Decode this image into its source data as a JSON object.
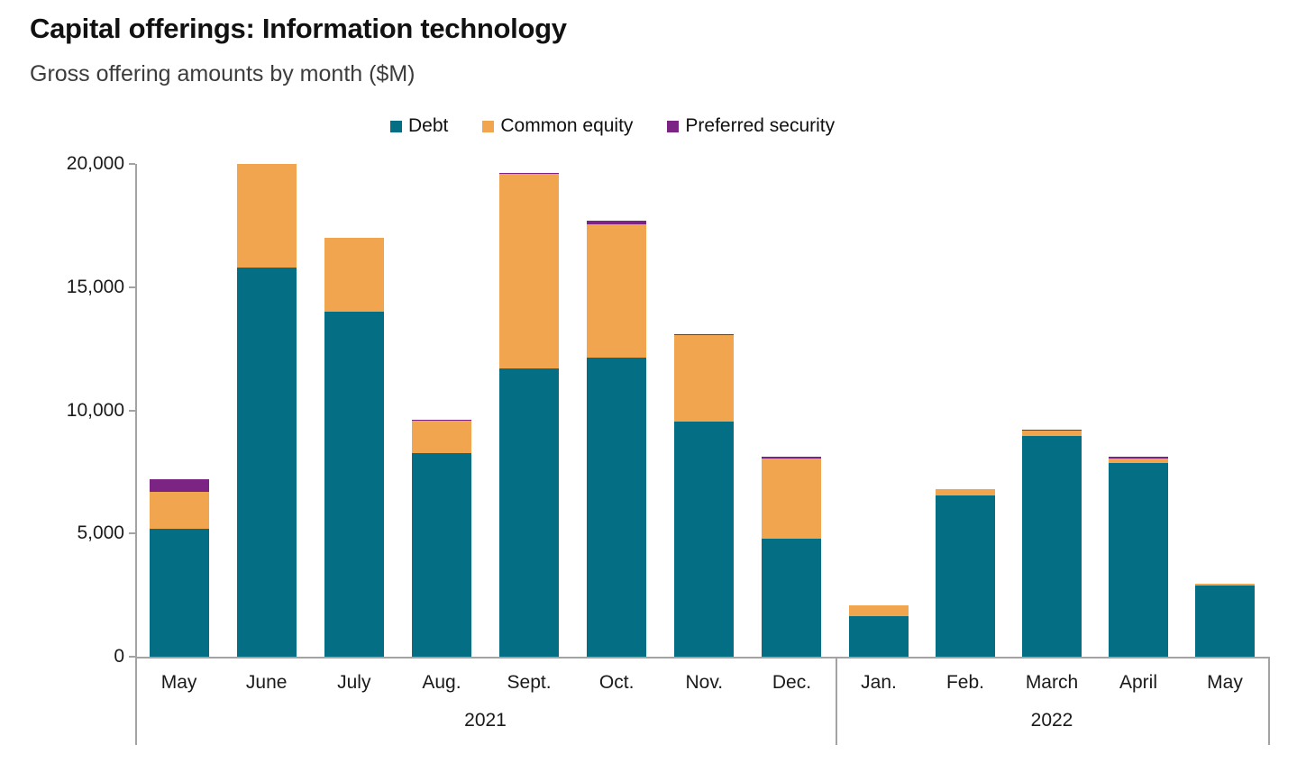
{
  "header": {
    "title": "Capital offerings: Information technology",
    "subtitle": "Gross offering amounts by month ($M)"
  },
  "legend": {
    "items": [
      {
        "label": "Debt",
        "color": "#046e85"
      },
      {
        "label": "Common equity",
        "color": "#f0a54e"
      },
      {
        "label": "Preferred security",
        "color": "#7c2483"
      }
    ]
  },
  "chart_data": {
    "type": "bar",
    "stacked": true,
    "title": "Capital offerings: Information technology",
    "subtitle": "Gross offering amounts by month ($M)",
    "xlabel": "",
    "ylabel": "",
    "units": "$M",
    "ylim": [
      0,
      20000
    ],
    "yticks": [
      0,
      5000,
      10000,
      15000,
      20000
    ],
    "ytick_labels": [
      "0",
      "5,000",
      "10,000",
      "15,000",
      "20,000"
    ],
    "grid": false,
    "legend_position": "top",
    "categories": [
      "May",
      "June",
      "July",
      "Aug.",
      "Sept.",
      "Oct.",
      "Nov.",
      "Dec.",
      "Jan.",
      "Feb.",
      "March",
      "April",
      "May"
    ],
    "groups": [
      {
        "label": "2021",
        "count": 8
      },
      {
        "label": "2022",
        "count": 5
      }
    ],
    "series": [
      {
        "name": "Debt",
        "color": "#046e85",
        "values": [
          5200,
          15800,
          14000,
          8250,
          11700,
          12150,
          9550,
          4780,
          1650,
          6550,
          8960,
          7850,
          2900
        ]
      },
      {
        "name": "Common equity",
        "color": "#f0a54e",
        "values": [
          1500,
          4200,
          3000,
          1330,
          7880,
          5400,
          3510,
          3270,
          430,
          240,
          210,
          210,
          60
        ]
      },
      {
        "name": "Preferred security",
        "color": "#7c2483",
        "values": [
          500,
          0,
          0,
          30,
          70,
          150,
          40,
          50,
          0,
          0,
          45,
          40,
          0
        ]
      }
    ],
    "totals": [
      7200,
      20000,
      17000,
      9610,
      19650,
      17700,
      13100,
      8100,
      2080,
      6790,
      9215,
      8100,
      2960
    ]
  }
}
